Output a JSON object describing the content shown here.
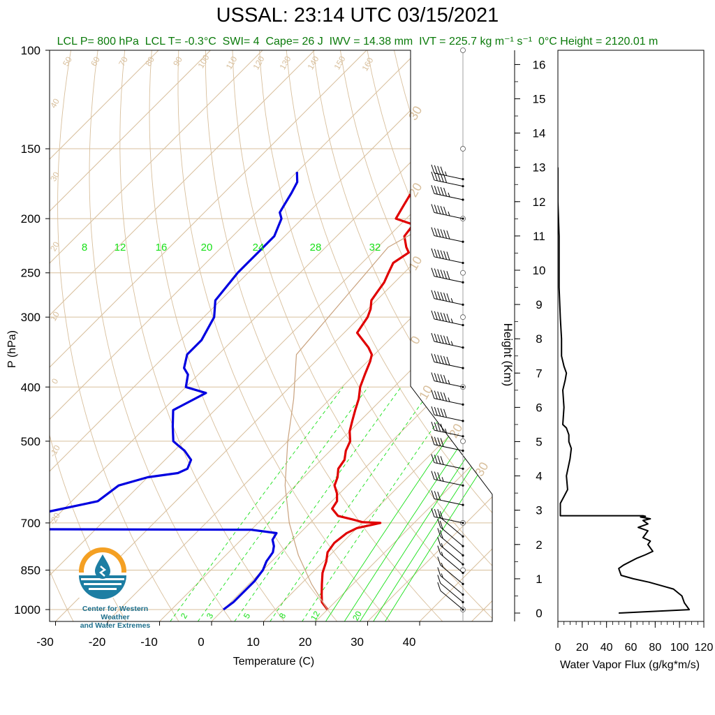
{
  "title": "USSAL: 23:14 UTC 03/15/2021",
  "subtitle": "LCL P= 800 hPa  LCL T= -0.3°C  SWI= 4  Cape= 26 J  IWV = 14.38 mm  IVT = 225.7 kg m⁻¹ s⁻¹  0°C Height = 2120.01 m",
  "logo": {
    "line1": "Center for Western Weather",
    "line2": "and Water Extremes"
  },
  "colors": {
    "temperature": "#e00000",
    "dewpoint": "#0000e0",
    "isotherm": "#d8bf9c",
    "mixing_ratio": "#18e018",
    "flux": "#000000",
    "annotation": "#0a7a0a"
  },
  "chart_data": [
    {
      "type": "line",
      "title": "",
      "xlabel": "Temperature (C)",
      "ylabel": "P (hPa)",
      "x_scale": "skew-T",
      "y_scale": "log",
      "xlim": [
        -33,
        52
      ],
      "ylim": [
        1050,
        100
      ],
      "x_ticks": [
        -30,
        -20,
        -10,
        0,
        10,
        20,
        30,
        40
      ],
      "y_ticks": [
        100,
        150,
        200,
        250,
        300,
        400,
        500,
        700,
        850,
        1000
      ],
      "isotherm_labels": [
        "50",
        "60",
        "70",
        "80",
        "90",
        "100",
        "110",
        "120",
        "130",
        "140",
        "150",
        "160",
        "40",
        "30",
        "20",
        "10",
        "0",
        "-10",
        "-20",
        "30",
        "20",
        "10",
        "0",
        "10",
        "20",
        "30"
      ],
      "mixing_ratio_labels": [
        "8",
        "12",
        "16",
        "20",
        "24",
        "28",
        "32"
      ],
      "mixing_ratio_bottom_labels": [
        "2",
        "3",
        "5",
        "8",
        "12",
        "20"
      ],
      "series": [
        {
          "name": "",
          "x": [
            20.0,
            17.5,
            16.0,
            14.0,
            12.0,
            10.5,
            9.0,
            8.5,
            9.0,
            10.0,
            13.5,
            10.0,
            7.5,
            4.0,
            1.5,
            1.0,
            -0.5,
            -2.5,
            -3.5,
            -5.0,
            -5.5,
            -7.0,
            -8.0,
            -10.0,
            -11.5,
            -13.0,
            -14.5,
            -16.5,
            -18.0,
            -19.5,
            -20.5,
            -22.5,
            -27.5,
            -28.0,
            -28.5,
            -29.5,
            -31.0,
            -31.5,
            -32.0,
            -33.0,
            -34.0,
            -33.0,
            -34.5,
            -37.0,
            -37.5,
            -42.0,
            -43.0,
            -44.0,
            -45.5,
            -46.0
          ],
          "y": [
            1000,
            970,
            940,
            900,
            860,
            820,
            790,
            760,
            730,
            715,
            700,
            698,
            690,
            680,
            660,
            640,
            620,
            600,
            580,
            560,
            540,
            520,
            500,
            480,
            460,
            440,
            420,
            400,
            380,
            360,
            350,
            340,
            320,
            310,
            300,
            290,
            280,
            270,
            260,
            250,
            240,
            230,
            225,
            215,
            205,
            200,
            190,
            180,
            172,
            165
          ]
        },
        {
          "name": "",
          "x": [
            0.0,
            0.5,
            0.5,
            0.5,
            0.0,
            -1.0,
            -1.5,
            -2.5,
            -4.0,
            -4.5,
            -10.0,
            -62.0,
            -58.0,
            -45.0,
            -44.0,
            -40.0,
            -35.0,
            -34.0,
            -35.0,
            -38.0,
            -40.0,
            -42.0,
            -45.0,
            -48.0,
            -45.0,
            -50.0,
            -52.0,
            -54.0,
            -56.0,
            -56.0,
            -58.0,
            -61.0,
            -62.0,
            -62.0,
            -62.0,
            -64.0,
            -65.5,
            -66.0,
            -67.0,
            -68.0,
            -70.0
          ],
          "y": [
            1000,
            970,
            930,
            890,
            850,
            820,
            790,
            770,
            750,
            730,
            720,
            718,
            690,
            640,
            600,
            580,
            570,
            560,
            540,
            520,
            510,
            500,
            470,
            440,
            410,
            400,
            380,
            370,
            350,
            330,
            300,
            280,
            250,
            230,
            215,
            200,
            195,
            190,
            180,
            172,
            165
          ]
        },
        {
          "name": "",
          "x": [
            20.0,
            12.0,
            4.0,
            -4.0,
            -12.0,
            -20.0,
            -27.0,
            -35.0,
            -38.0,
            -30.0,
            -24.0,
            -20.0
          ],
          "y": [
            1000,
            900,
            800,
            700,
            600,
            500,
            420,
            350,
            225,
            180,
            140,
            100
          ]
        }
      ],
      "wind_barbs": {
        "column_x_label": "",
        "pressures": [
          1000,
          970,
          940,
          900,
          860,
          830,
          800,
          770,
          740,
          700,
          650,
          600,
          560,
          520,
          490,
          460,
          430,
          400,
          370,
          340,
          310,
          285,
          260,
          240,
          220,
          200,
          185,
          175,
          170
        ],
        "speeds_kt": [
          10,
          10,
          15,
          15,
          15,
          15,
          20,
          20,
          20,
          25,
          30,
          35,
          40,
          40,
          45,
          50,
          55,
          55,
          60,
          65,
          65,
          65,
          60,
          60,
          60,
          55,
          55,
          50,
          45
        ]
      }
    },
    {
      "type": "line",
      "title": "",
      "xlabel": "Water Vapor Flux (g/kg*m/s)",
      "ylabel": "Height (Km)",
      "xlim": [
        0,
        120
      ],
      "ylim": [
        -0.2,
        16.5
      ],
      "x_ticks": [
        0,
        20,
        40,
        60,
        80,
        100,
        120
      ],
      "y_ticks": [
        0,
        1,
        2,
        3,
        4,
        5,
        6,
        7,
        8,
        9,
        10,
        11,
        12,
        13,
        14,
        15,
        16
      ],
      "series": [
        {
          "name": "",
          "x": [
            50,
            108,
            104,
            102,
            95,
            85,
            75,
            62,
            52,
            50,
            54,
            65,
            72,
            78,
            74,
            76,
            70,
            74,
            66,
            74,
            70,
            76,
            68,
            72,
            70,
            2,
            2,
            5,
            8,
            7,
            10,
            11,
            9,
            9,
            7,
            4,
            5,
            4,
            6,
            7,
            5,
            3,
            3,
            2,
            1,
            1,
            0,
            0
          ],
          "y": [
            0.0,
            0.1,
            0.3,
            0.5,
            0.7,
            0.8,
            0.9,
            1.0,
            1.1,
            1.3,
            1.4,
            1.6,
            1.7,
            1.8,
            2.0,
            2.1,
            2.2,
            2.4,
            2.5,
            2.6,
            2.7,
            2.75,
            2.8,
            2.82,
            2.84,
            2.84,
            3.2,
            3.4,
            3.6,
            4.0,
            4.5,
            4.8,
            5.0,
            5.2,
            5.4,
            5.5,
            6.0,
            6.5,
            6.8,
            7.0,
            7.2,
            7.5,
            8.0,
            8.6,
            9.5,
            11.0,
            12.0,
            13.0
          ]
        }
      ]
    }
  ]
}
